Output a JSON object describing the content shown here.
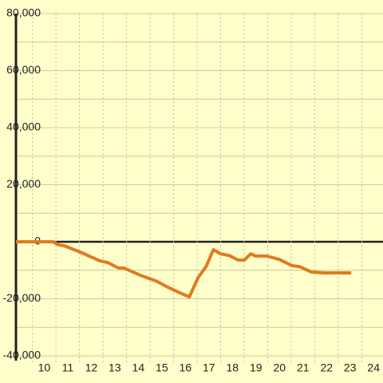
{
  "chart_data": {
    "type": "line",
    "x": [
      8.8,
      10.37,
      10.58,
      10.85,
      11.53,
      12.37,
      12.71,
      13.15,
      13.39,
      14.07,
      14.75,
      15.25,
      15.76,
      16.17,
      16.54,
      16.88,
      17.19,
      17.49,
      17.86,
      18.24,
      18.51,
      18.78,
      18.98,
      19.46,
      20.0,
      20.54,
      20.85,
      21.36,
      21.86,
      22.37,
      23.05
    ],
    "series": [
      {
        "color": "#e07b20",
        "values": [
          0,
          0,
          -1000,
          -1400,
          -3600,
          -6700,
          -7300,
          -9200,
          -9200,
          -11700,
          -13700,
          -15900,
          -17900,
          -19300,
          -12600,
          -8700,
          -2800,
          -4200,
          -4800,
          -6400,
          -6400,
          -4200,
          -5000,
          -5000,
          -6200,
          -8400,
          -8700,
          -10600,
          -10900,
          -10900,
          -10900
        ]
      }
    ],
    "xlim": [
      8.8,
      24.4
    ],
    "xticks": [
      10,
      11,
      12,
      13,
      14,
      15,
      16,
      17,
      18,
      19,
      20,
      21,
      22,
      23,
      24
    ],
    "ylim": [
      -40000,
      80000
    ],
    "yticks": [
      {
        "value": -40000,
        "label": "-40,000"
      },
      {
        "value": -20000,
        "label": "-20,000"
      },
      0,
      {
        "value": 20000,
        "label": "20,000"
      },
      {
        "value": 40000,
        "label": "40,000"
      },
      {
        "value": 60000,
        "label": "60,000"
      },
      {
        "value": 80000,
        "label": "80,000"
      }
    ],
    "grid": true
  }
}
